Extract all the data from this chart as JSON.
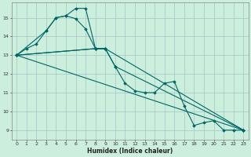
{
  "background_color": "#cceedd",
  "grid_color": "#aacccc",
  "line_color": "#006666",
  "xlabel": "Humidex (Indice chaleur)",
  "xlim": [
    -0.5,
    23.5
  ],
  "ylim": [
    8.5,
    15.8
  ],
  "yticks": [
    9,
    10,
    11,
    12,
    13,
    14,
    15
  ],
  "xticks": [
    0,
    1,
    2,
    3,
    4,
    5,
    6,
    7,
    8,
    9,
    10,
    11,
    12,
    13,
    14,
    15,
    16,
    17,
    18,
    19,
    20,
    21,
    22,
    23
  ],
  "series": [
    {
      "x": [
        0,
        1,
        2,
        3,
        4,
        5,
        6,
        7,
        8,
        9
      ],
      "y": [
        13.0,
        13.35,
        13.6,
        14.3,
        15.0,
        15.1,
        14.95,
        14.4,
        13.35,
        13.35
      ]
    },
    {
      "x": [
        0,
        3,
        4,
        5,
        6,
        7,
        8,
        9,
        10,
        11,
        12,
        13,
        14,
        15,
        16,
        17,
        18,
        19,
        20,
        21,
        22,
        23
      ],
      "y": [
        13.0,
        14.3,
        15.0,
        15.1,
        15.5,
        15.5,
        13.35,
        13.35,
        12.4,
        11.5,
        11.1,
        11.0,
        11.0,
        11.5,
        11.6,
        10.3,
        9.25,
        9.4,
        9.5,
        9.0,
        9.0,
        9.0
      ]
    },
    {
      "x": [
        0,
        8,
        9,
        23
      ],
      "y": [
        13.0,
        13.35,
        13.35,
        9.0
      ]
    },
    {
      "x": [
        0,
        23
      ],
      "y": [
        13.0,
        9.0
      ]
    },
    {
      "x": [
        0,
        8,
        9,
        10,
        23
      ],
      "y": [
        13.0,
        13.35,
        13.35,
        12.4,
        9.0
      ]
    }
  ]
}
